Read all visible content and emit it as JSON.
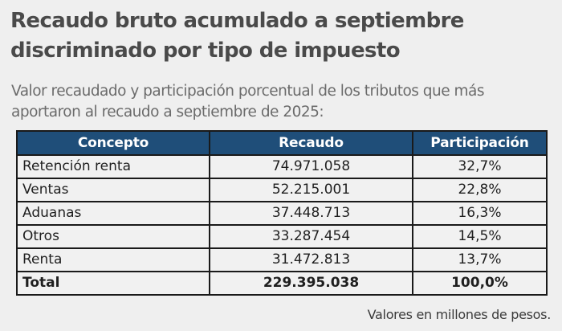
{
  "title": "Recaudo bruto acumulado a septiembre discriminado por tipo de impuesto",
  "subtitle": "Valor recaudado y participación porcentual de los tributos que más aportaron al recaudo a septiembre de 2025:",
  "table": {
    "headers": [
      "Concepto",
      "Recaudo",
      "Participación"
    ],
    "header_color": "#1f4e79",
    "rows": [
      {
        "concepto": "Retención renta",
        "recaudo": "74.971.058",
        "participacion": "32,7%"
      },
      {
        "concepto": "Ventas",
        "recaudo": "52.215.001",
        "participacion": "22,8%"
      },
      {
        "concepto": "Aduanas",
        "recaudo": "37.448.713",
        "participacion": "16,3%"
      },
      {
        "concepto": "Otros",
        "recaudo": "33.287.454",
        "participacion": "14,5%"
      },
      {
        "concepto": "Renta",
        "recaudo": "31.472.813",
        "participacion": "13,7%"
      }
    ],
    "total": {
      "concepto": "Total",
      "recaudo": "229.395.038",
      "participacion": "100,0%"
    }
  },
  "note": "Valores en millones de pesos."
}
